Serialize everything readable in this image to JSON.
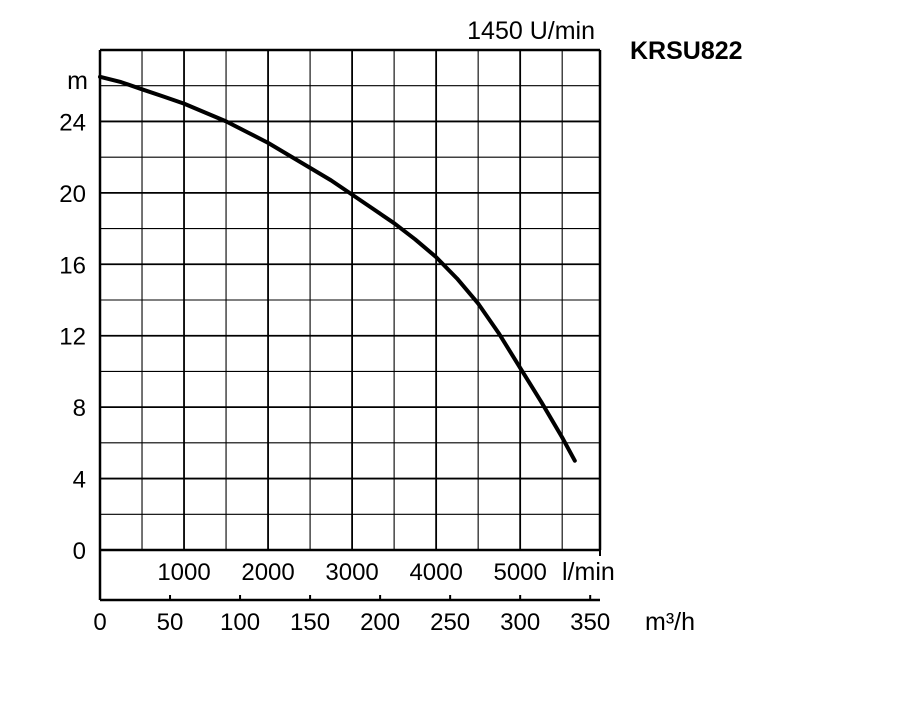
{
  "chart_data": {
    "type": "line",
    "model": "KRSU822",
    "speed": "1450 U/min",
    "ylabel": "m",
    "xunit_primary": "m³/h",
    "xunit_secondary": "l/min",
    "ylim": [
      0,
      28
    ],
    "xlim": [
      0,
      357
    ],
    "x_ticks": [
      "0",
      "50",
      "100",
      "150",
      "200",
      "250",
      "300",
      "350"
    ],
    "x_tick_values": [
      0,
      50,
      100,
      150,
      200,
      250,
      300,
      350
    ],
    "y_ticks": [
      "0",
      "4",
      "8",
      "12",
      "16",
      "20",
      "24"
    ],
    "y_tick_values": [
      0,
      4,
      8,
      12,
      16,
      20,
      24
    ],
    "lmin_ticks": [
      "1000",
      "2000",
      "3000",
      "4000",
      "5000"
    ],
    "lmin_tick_values": [
      1000,
      2000,
      3000,
      4000,
      5000
    ],
    "grid": true,
    "series": [
      {
        "x": [
          0,
          15,
          30,
          45,
          60,
          75,
          90,
          105,
          120,
          135,
          150,
          165,
          180,
          195,
          210,
          225,
          240,
          255,
          270,
          285,
          300,
          315,
          330,
          339
        ],
        "y": [
          26.5,
          26.2,
          25.8,
          25.4,
          25.0,
          24.5,
          24.0,
          23.4,
          22.8,
          22.1,
          21.4,
          20.7,
          19.9,
          19.1,
          18.3,
          17.4,
          16.4,
          15.2,
          13.8,
          12.1,
          10.2,
          8.3,
          6.3,
          5.0
        ]
      }
    ]
  }
}
